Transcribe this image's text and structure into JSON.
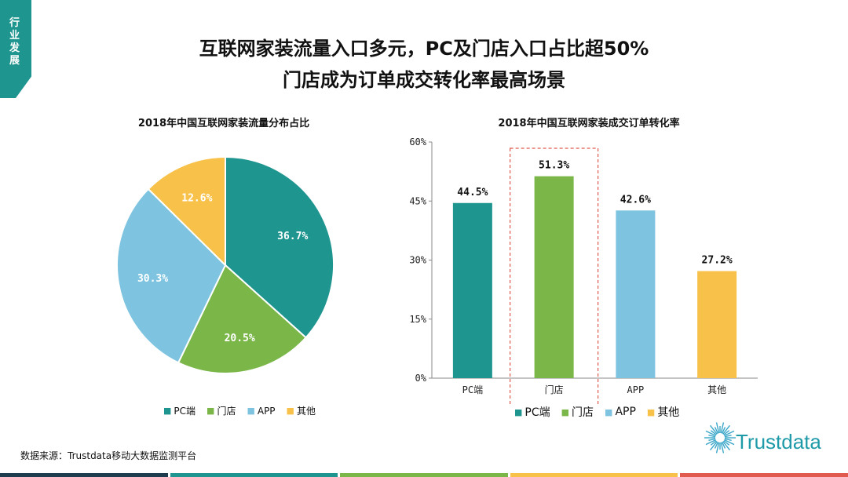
{
  "side_tab": "行业发展",
  "title_line1": "互联网家装流量入口多元，PC及门店入口占比超50%",
  "title_line2": "门店成为订单成交转化率最高场景",
  "source": "数据来源：Trustdata移动大数据监测平台",
  "logo_text": "Trustdata",
  "colors": {
    "teal": "#1f9590",
    "green": "#7ab648",
    "lightblue": "#7ec4e0",
    "yellow": "#f8c14a",
    "highlight": "#e05a4e"
  },
  "chart_data": [
    {
      "type": "pie",
      "title": "2018年中国互联网家装流量分布占比",
      "categories": [
        "PC端",
        "门店",
        "APP",
        "其他"
      ],
      "values": [
        36.7,
        20.5,
        30.3,
        12.6
      ],
      "labels": [
        "36.7%",
        "20.5%",
        "30.3%",
        "12.6%"
      ],
      "legend": [
        "PC端",
        "门店",
        "APP",
        "其他"
      ],
      "legend_position": "bottom"
    },
    {
      "type": "bar",
      "title": "2018年中国互联网家装成交订单转化率",
      "categories": [
        "PC端",
        "门店",
        "APP",
        "其他"
      ],
      "values": [
        44.5,
        51.3,
        42.6,
        27.2
      ],
      "labels": [
        "44.5%",
        "51.3%",
        "42.6%",
        "27.2%"
      ],
      "ylim": [
        0,
        60
      ],
      "yticks": [
        "0%",
        "15%",
        "30%",
        "45%",
        "60%"
      ],
      "highlight_category": "门店",
      "legend": [
        "PC端",
        "门店",
        "APP",
        "其他"
      ],
      "legend_position": "bottom"
    }
  ]
}
